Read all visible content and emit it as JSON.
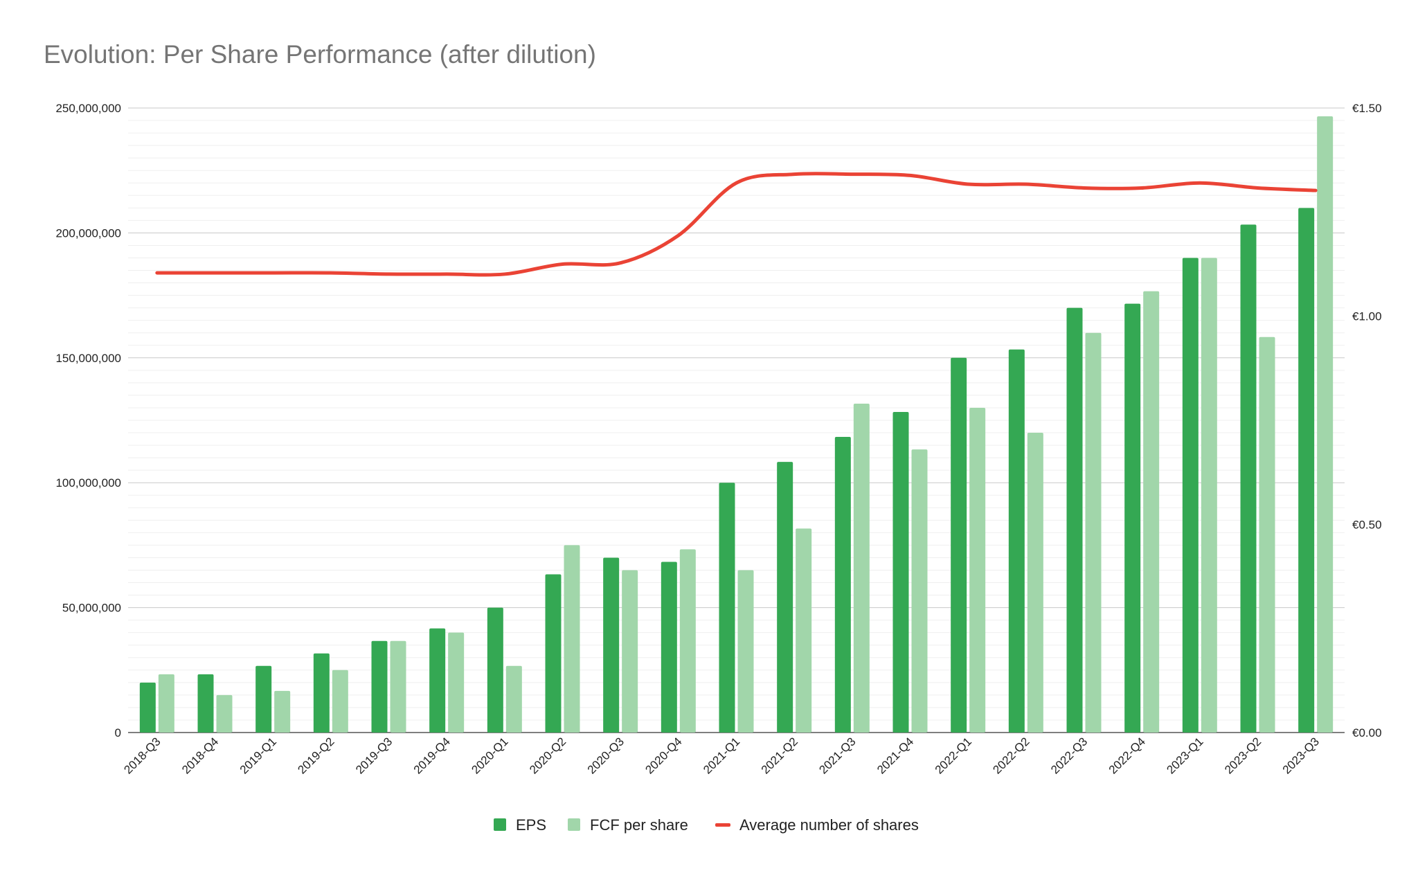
{
  "chart_data": {
    "type": "bar",
    "title": "Evolution: Per Share Performance (after dilution)",
    "categories": [
      "2018-Q3",
      "2018-Q4",
      "2019-Q1",
      "2019-Q2",
      "2019-Q3",
      "2019-Q4",
      "2020-Q1",
      "2020-Q2",
      "2020-Q3",
      "2020-Q4",
      "2021-Q1",
      "2021-Q2",
      "2021-Q3",
      "2021-Q4",
      "2022-Q1",
      "2022-Q2",
      "2022-Q3",
      "2022-Q4",
      "2023-Q1",
      "2023-Q2",
      "2023-Q3"
    ],
    "series": [
      {
        "name": "EPS",
        "type": "bar",
        "axis": "right",
        "color": "#34a853",
        "values": [
          0.12,
          0.14,
          0.16,
          0.19,
          0.22,
          0.25,
          0.3,
          0.38,
          0.42,
          0.41,
          0.6,
          0.65,
          0.71,
          0.77,
          0.9,
          0.92,
          1.02,
          1.03,
          1.14,
          1.22,
          1.26
        ]
      },
      {
        "name": "FCF per share",
        "type": "bar",
        "axis": "right",
        "color": "#a1d6aa",
        "values": [
          0.14,
          0.09,
          0.1,
          0.15,
          0.22,
          0.24,
          0.16,
          0.45,
          0.39,
          0.44,
          0.39,
          0.49,
          0.79,
          0.68,
          0.78,
          0.72,
          0.96,
          1.06,
          1.14,
          0.95,
          1.48
        ]
      },
      {
        "name": "Average number of shares",
        "type": "line",
        "axis": "left",
        "color": "#ea4335",
        "values": [
          184000000,
          184000000,
          184000000,
          184000000,
          183500000,
          183500000,
          183500000,
          187500000,
          188000000,
          199000000,
          220000000,
          223500000,
          223500000,
          223000000,
          219500000,
          219500000,
          218000000,
          218000000,
          220000000,
          218000000,
          217000000
        ]
      }
    ],
    "y_left": {
      "ylim": [
        0,
        250000000
      ],
      "ticks": [
        "0",
        "50,000,000",
        "100,000,000",
        "150,000,000",
        "200,000,000",
        "250,000,000"
      ]
    },
    "y_right": {
      "ylim": [
        0,
        1.5
      ],
      "ticks": [
        "€0.00",
        "€0.50",
        "€1.00",
        "€1.50"
      ]
    },
    "grid": true,
    "legend_position": "bottom"
  }
}
